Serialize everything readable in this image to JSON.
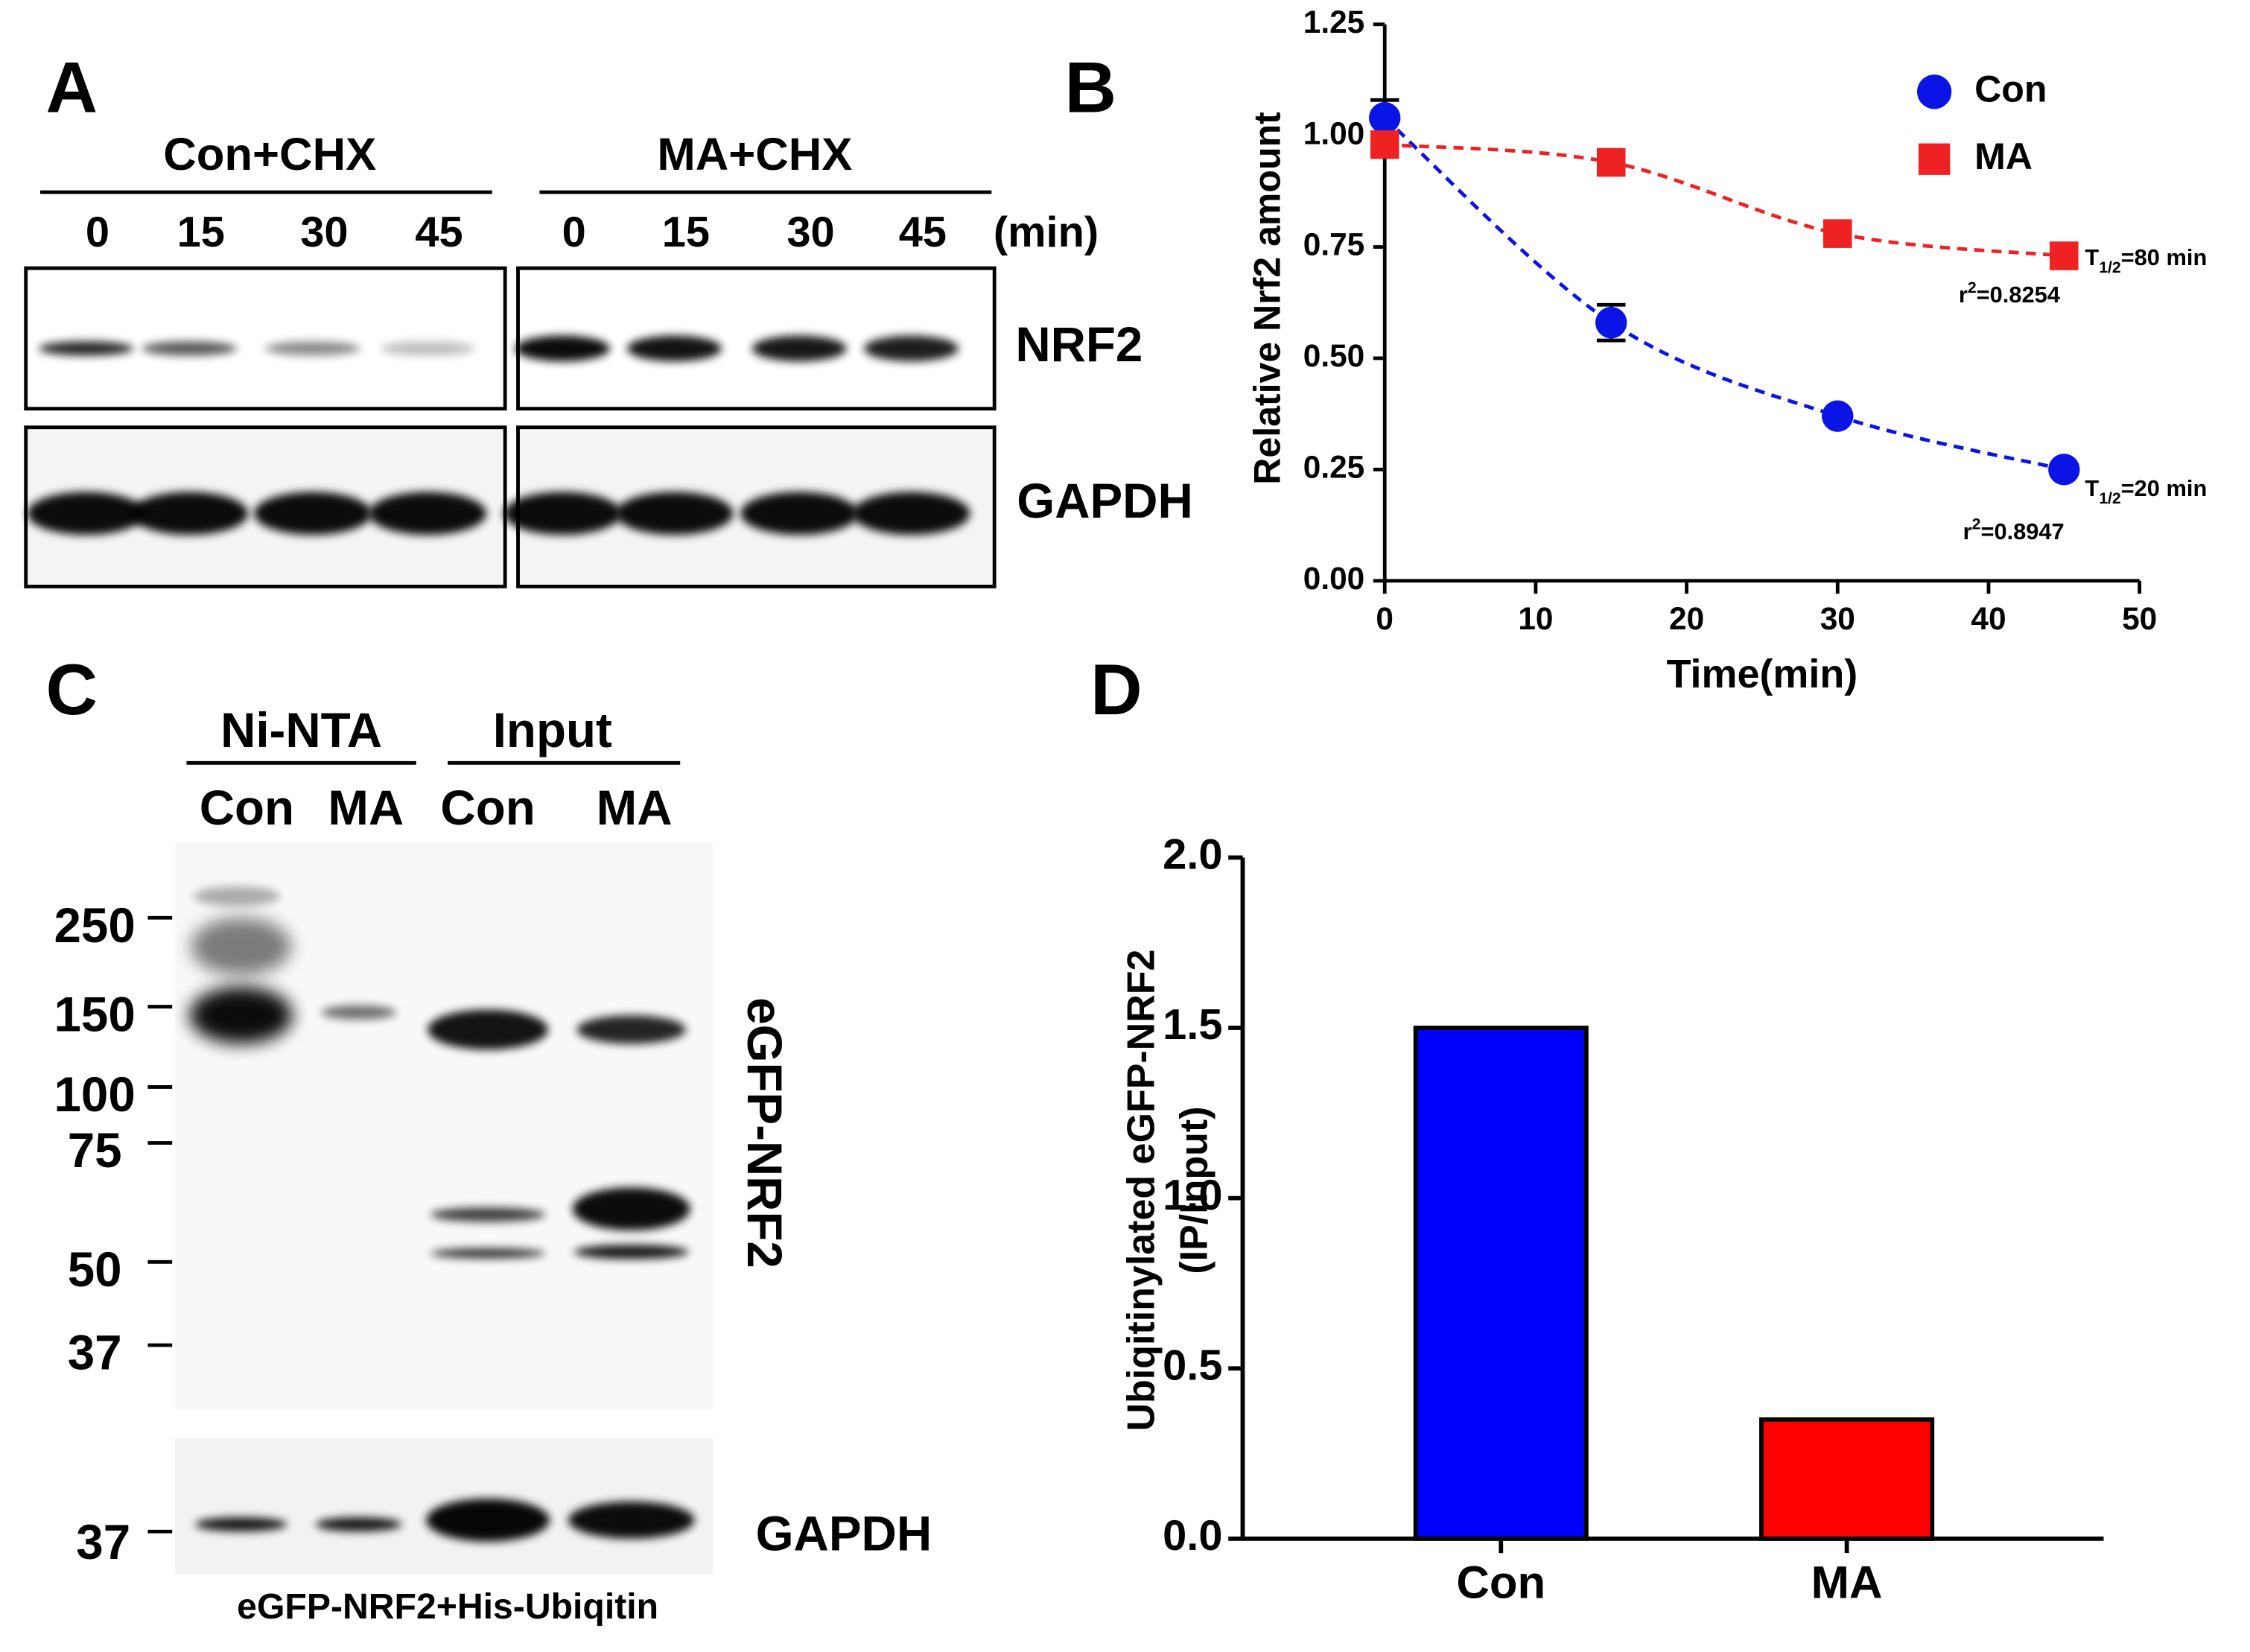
{
  "panels": [
    "A",
    "B",
    "C",
    "D"
  ],
  "panel_a": {
    "groups": [
      "Con+CHX",
      "MA+CHX"
    ],
    "times": [
      "0",
      "15",
      "30",
      "45",
      "0",
      "15",
      "30",
      "45"
    ],
    "unit": "(min)",
    "rows": [
      "NRF2",
      "GAPDH"
    ]
  },
  "panel_c": {
    "groups": [
      "Ni-NTA",
      "Input"
    ],
    "lanes": [
      "Con",
      "MA",
      "Con",
      "MA"
    ],
    "markers": [
      "250",
      "150",
      "100",
      "75",
      "50",
      "37"
    ],
    "gapdh_marker": "37",
    "rows": [
      "eGFP-NRF2",
      "GAPDH"
    ],
    "caption": "eGFP-NRF2+His-Ubiqitin"
  },
  "chart_data": [
    {
      "type": "line",
      "x_label": "Time(min)",
      "y_label": "Relative Nrf2 amount",
      "xlim": [
        0,
        50
      ],
      "xticks": [
        0,
        10,
        20,
        30,
        40,
        50
      ],
      "ylim": [
        0,
        1.25
      ],
      "yticks": [
        {
          "value": 0,
          "label": "0.00"
        },
        {
          "value": 0.25,
          "label": "0.25"
        },
        {
          "value": 0.5,
          "label": "0.50"
        },
        {
          "value": 0.75,
          "label": "0.75"
        },
        {
          "value": 1,
          "label": "1.00"
        },
        {
          "value": 1.25,
          "label": "1.25"
        }
      ],
      "legend": "upper right",
      "series": [
        {
          "name": "Con",
          "color": "#0a14e6",
          "marker": "circle",
          "x": [
            0,
            15,
            30,
            45
          ],
          "values": [
            1.04,
            0.58,
            0.37,
            0.25
          ],
          "errors": [
            0.04,
            0.04,
            null,
            null
          ]
        },
        {
          "name": "MA",
          "color": "#ee2222",
          "marker": "square",
          "x": [
            0,
            15,
            30,
            45
          ],
          "values": [
            0.98,
            0.94,
            0.78,
            0.73
          ],
          "errors": [
            null,
            null,
            null,
            null
          ]
        }
      ],
      "annotations": [
        {
          "base": "T",
          "sub": "1/2",
          "text": "=80 min"
        },
        {
          "base": "r",
          "sup": "2",
          "text": "=0.8254"
        },
        {
          "base": "T",
          "sub": "1/2",
          "text": "=20 min"
        },
        {
          "base": "r",
          "sup": "2",
          "text": "=0.8947"
        }
      ]
    },
    {
      "type": "bar",
      "y_label": [
        "Ubiqitinylated eGFP-NRF2",
        "(IP/Input)"
      ],
      "categories": [
        "Con",
        "MA"
      ],
      "values": [
        1.5,
        0.35
      ],
      "colors": [
        "#0000ff",
        "#ff0000"
      ],
      "ylim": [
        0,
        2
      ],
      "yticks": [
        {
          "value": 0,
          "label": "0.0"
        },
        {
          "value": 0.5,
          "label": "0.5"
        },
        {
          "value": 1,
          "label": "1.0"
        },
        {
          "value": 1.5,
          "label": "1.5"
        },
        {
          "value": 2,
          "label": "2.0"
        }
      ]
    }
  ]
}
